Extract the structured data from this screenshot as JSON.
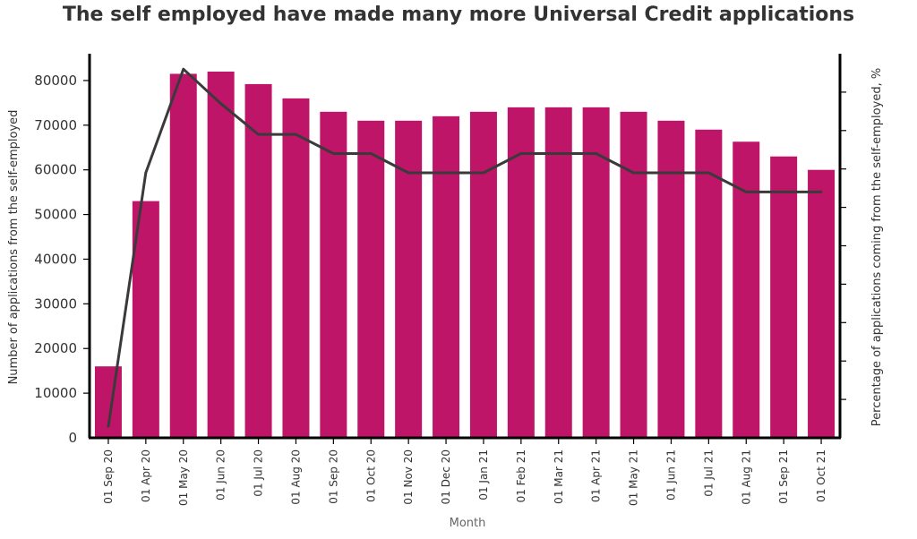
{
  "chart_data": {
    "type": "bar",
    "title": "The self employed have made many more Universal Credit applications",
    "xlabel": "Month",
    "ylabel": "Number of applications from the self-employed",
    "y2label": "Percentage of applications coming from the self-employed, %",
    "ylim": [
      0,
      86000
    ],
    "yticks": [
      0,
      10000,
      20000,
      30000,
      40000,
      50000,
      60000,
      70000,
      80000
    ],
    "y2lim": [
      0,
      100
    ],
    "y2ticks": [
      10,
      20,
      30,
      40,
      50,
      60,
      70,
      80,
      90
    ],
    "categories": [
      "01 Sep 20",
      "01 Apr 20",
      "01 May 20",
      "01 Jun 20",
      "01 Jul 20",
      "01 Aug 20",
      "01 Sep 20",
      "01 Oct 20",
      "01 Nov 20",
      "01 Dec 20",
      "01 Jan 21",
      "01 Feb 21",
      "01 Mar 21",
      "01 Apr 21",
      "01 May 21",
      "01 Jun 21",
      "01 Jul 21",
      "01 Aug 21",
      "01 Sep 21",
      "01 Oct 21"
    ],
    "series": [
      {
        "kind": "bar",
        "axis": "left",
        "values": [
          16000,
          53000,
          81500,
          82000,
          79200,
          76000,
          73000,
          71000,
          71000,
          72000,
          73000,
          74000,
          74000,
          74000,
          73000,
          71000,
          69000,
          66300,
          63000,
          60000
        ]
      },
      {
        "kind": "line",
        "axis": "right",
        "values": [
          3,
          69,
          96,
          87,
          79,
          79,
          74,
          74,
          69,
          69,
          69,
          74,
          74,
          74,
          69,
          69,
          69,
          64,
          64,
          64
        ]
      }
    ],
    "colors": {
      "bar": "#BF1569",
      "line": "#3A3A3A",
      "axis": "#000000"
    },
    "grid": false,
    "legend": "none"
  }
}
